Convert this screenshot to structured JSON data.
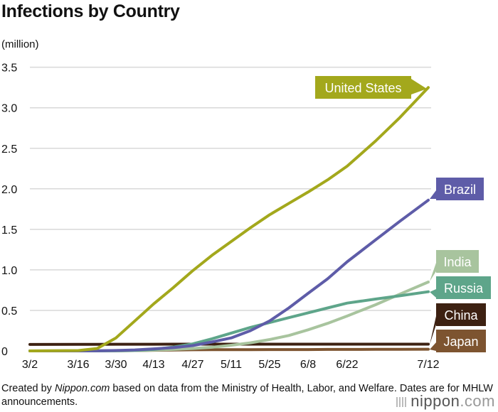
{
  "title": "Infections by Country",
  "unit": "(million)",
  "footer": {
    "prefix": "Created by ",
    "source_italic": "Nippon.com",
    "suffix": " based on data from the Ministry of Health, Labor, and Welfare. Dates are for MHLW announcements."
  },
  "logo": {
    "text": "nippon",
    "suffix": ".com"
  },
  "chart_data": {
    "type": "line",
    "title": "Infections by Country",
    "ylabel": "(million)",
    "ylim": [
      0,
      3.5
    ],
    "yticks": [
      "0",
      "0.5",
      "1.0",
      "1.5",
      "2.0",
      "2.5",
      "3.0",
      "3.5"
    ],
    "xticks": [
      "3/2",
      "3/16",
      "3/30",
      "4/13",
      "4/27",
      "5/11",
      "5/25",
      "6/8",
      "6/22",
      "7/12"
    ],
    "grid": true,
    "x": [
      "3/2",
      "3/16",
      "3/23",
      "3/30",
      "4/6",
      "4/13",
      "4/20",
      "4/27",
      "5/4",
      "5/11",
      "5/18",
      "5/25",
      "6/1",
      "6/8",
      "6/15",
      "6/22",
      "6/29",
      "7/5",
      "7/12"
    ],
    "series": [
      {
        "name": "United States",
        "color": "#a3a81c",
        "values": [
          0.0,
          0.004,
          0.03,
          0.16,
          0.37,
          0.58,
          0.78,
          0.99,
          1.18,
          1.35,
          1.52,
          1.68,
          1.82,
          1.96,
          2.11,
          2.28,
          2.59,
          2.88,
          3.25
        ]
      },
      {
        "name": "Brazil",
        "color": "#5e5ca8",
        "values": [
          0.0,
          0.0,
          0.001,
          0.005,
          0.012,
          0.025,
          0.04,
          0.066,
          0.11,
          0.16,
          0.25,
          0.37,
          0.53,
          0.71,
          0.89,
          1.1,
          1.37,
          1.6,
          1.86
        ]
      },
      {
        "name": "India",
        "color": "#a8c49e",
        "values": [
          0.0,
          0.0,
          0.0,
          0.001,
          0.004,
          0.01,
          0.018,
          0.03,
          0.045,
          0.07,
          0.1,
          0.14,
          0.19,
          0.26,
          0.34,
          0.43,
          0.57,
          0.7,
          0.85
        ]
      },
      {
        "name": "Russia",
        "color": "#5ea58a",
        "values": [
          0.0,
          0.0,
          0.0,
          0.002,
          0.007,
          0.018,
          0.047,
          0.087,
          0.15,
          0.22,
          0.29,
          0.35,
          0.41,
          0.47,
          0.53,
          0.59,
          0.64,
          0.68,
          0.73
        ]
      },
      {
        "name": "China",
        "color": "#3d2112",
        "values": [
          0.08,
          0.081,
          0.081,
          0.082,
          0.082,
          0.082,
          0.083,
          0.083,
          0.083,
          0.083,
          0.083,
          0.083,
          0.083,
          0.083,
          0.083,
          0.083,
          0.083,
          0.083,
          0.083
        ]
      },
      {
        "name": "Japan",
        "color": "#7d5430",
        "values": [
          0.0,
          0.001,
          0.001,
          0.002,
          0.004,
          0.008,
          0.011,
          0.014,
          0.015,
          0.016,
          0.016,
          0.017,
          0.017,
          0.017,
          0.018,
          0.018,
          0.019,
          0.02,
          0.021
        ]
      }
    ]
  }
}
